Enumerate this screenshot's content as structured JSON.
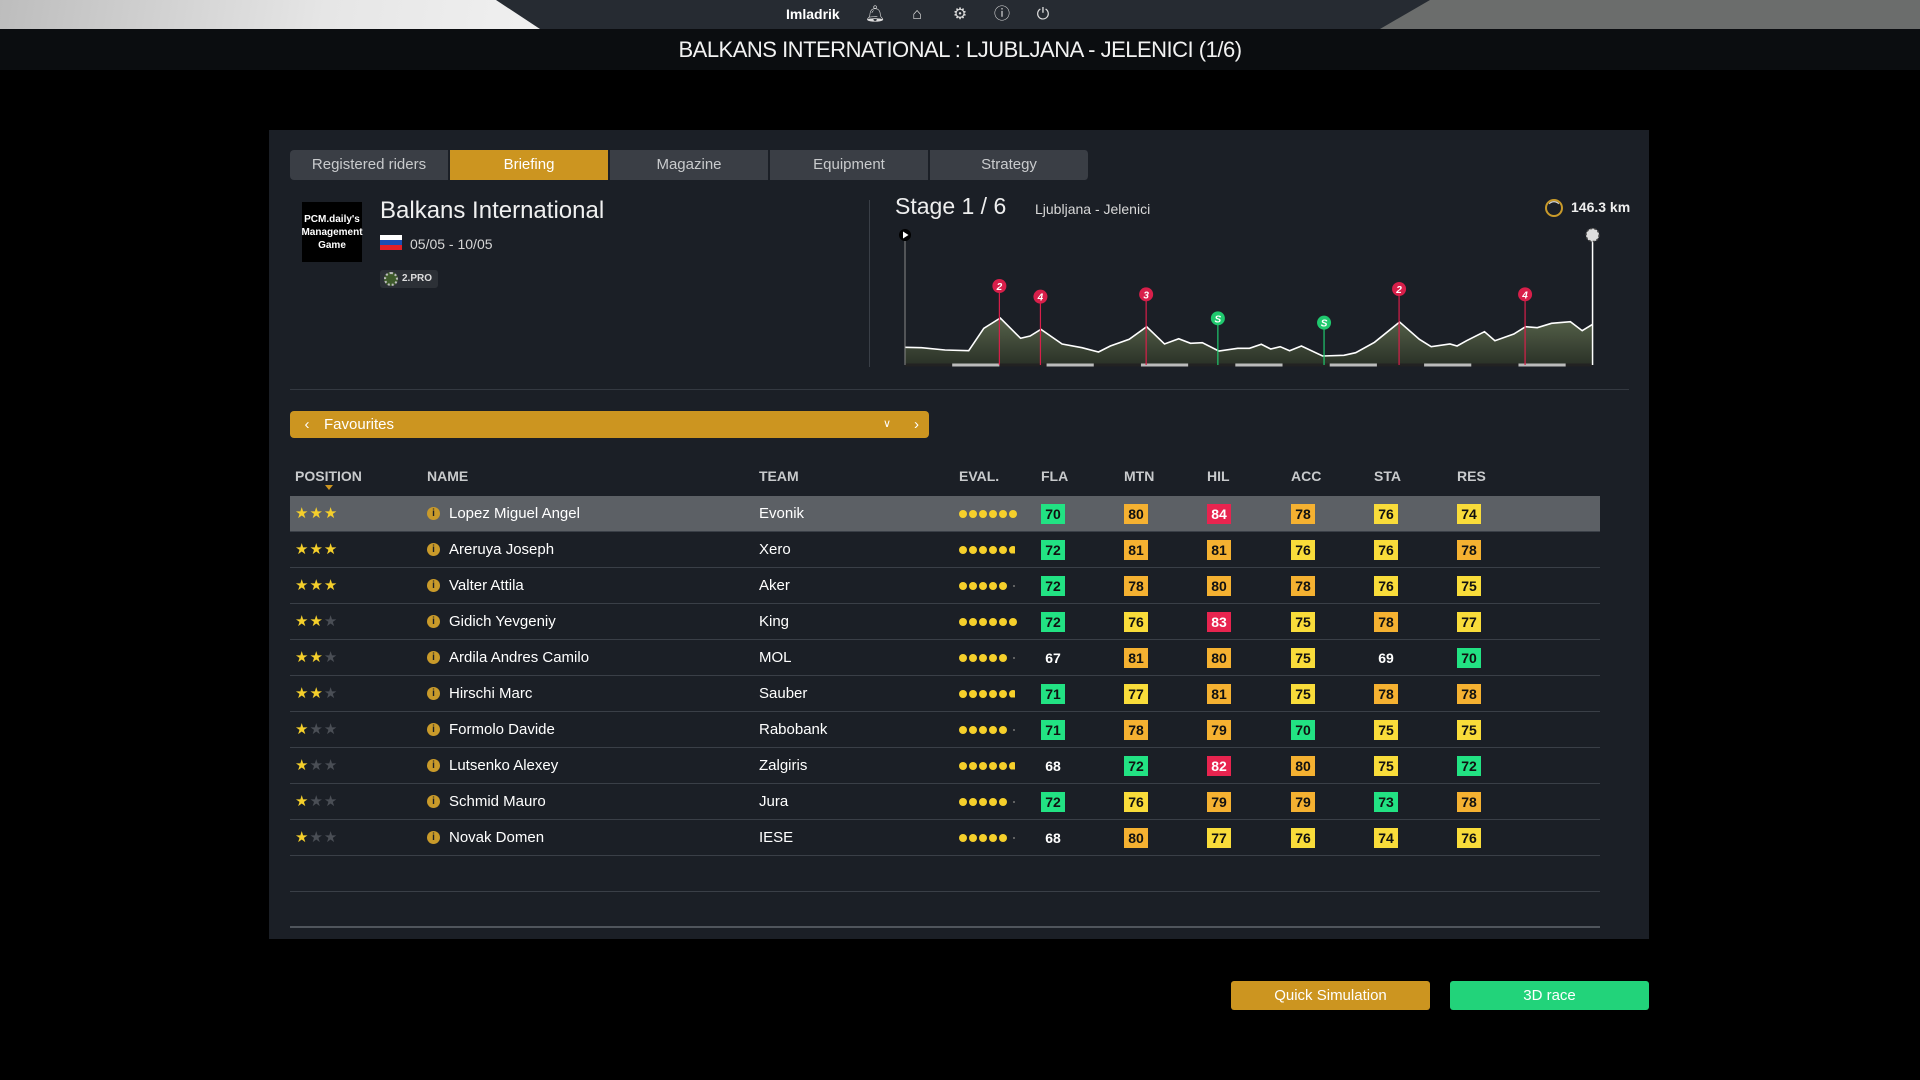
{
  "topbar": {
    "username": "Imladrik",
    "icons": [
      "bell-icon",
      "home-icon",
      "gear-icon",
      "info-icon",
      "power-icon"
    ]
  },
  "title": "BALKANS INTERNATIONAL : LJUBLJANA - JELENICI (1/6)",
  "tabs": [
    {
      "label": "Registered riders",
      "active": false
    },
    {
      "label": "Briefing",
      "active": true
    },
    {
      "label": "Magazine",
      "active": false
    },
    {
      "label": "Equipment",
      "active": false
    },
    {
      "label": "Strategy",
      "active": false
    }
  ],
  "race": {
    "logo_text": "PCM.daily's Management Game",
    "name": "Balkans International",
    "dates": "05/05 - 10/05",
    "category": "2.PRO",
    "country_flag": "slovenia"
  },
  "stage": {
    "title": "Stage 1 / 6",
    "route": "Ljubljana - Jelenici",
    "distance": "146.3 km",
    "markers": [
      "2",
      "4",
      "3",
      "S",
      "S",
      "2",
      "4"
    ]
  },
  "filter": {
    "label": "Favourites"
  },
  "table": {
    "headers": {
      "position": "POSITION",
      "name": "NAME",
      "team": "TEAM",
      "eval": "EVAL.",
      "fla": "FLA",
      "mtn": "MTN",
      "hil": "HIL",
      "acc": "ACC",
      "sta": "STA",
      "res": "RES"
    },
    "sorted_by": "position",
    "rows": [
      {
        "stars": 3,
        "name": "Lopez Miguel Angel",
        "team": "Evonik",
        "eval": 6,
        "fla": 70,
        "mtn": 80,
        "hil": 84,
        "acc": 78,
        "sta": 76,
        "res": 74,
        "selected": true
      },
      {
        "stars": 3,
        "name": "Areruya Joseph",
        "team": "Xero",
        "eval": 5.5,
        "fla": 72,
        "mtn": 81,
        "hil": 81,
        "acc": 76,
        "sta": 76,
        "res": 78
      },
      {
        "stars": 3,
        "name": "Valter Attila",
        "team": "Aker",
        "eval": 5,
        "fla": 72,
        "mtn": 78,
        "hil": 80,
        "acc": 78,
        "sta": 76,
        "res": 75
      },
      {
        "stars": 2,
        "name": "Gidich Yevgeniy",
        "team": "King",
        "eval": 6,
        "fla": 72,
        "mtn": 76,
        "hil": 83,
        "acc": 75,
        "sta": 78,
        "res": 77
      },
      {
        "stars": 2,
        "name": "Ardila Andres Camilo",
        "team": "MOL",
        "eval": 5,
        "fla": 67,
        "mtn": 81,
        "hil": 80,
        "acc": 75,
        "sta": 69,
        "res": 70
      },
      {
        "stars": 2,
        "name": "Hirschi Marc",
        "team": "Sauber",
        "eval": 5.5,
        "fla": 71,
        "mtn": 77,
        "hil": 81,
        "acc": 75,
        "sta": 78,
        "res": 78
      },
      {
        "stars": 1,
        "name": "Formolo Davide",
        "team": "Rabobank",
        "eval": 5,
        "fla": 71,
        "mtn": 78,
        "hil": 79,
        "acc": 70,
        "sta": 75,
        "res": 75
      },
      {
        "stars": 1,
        "name": "Lutsenko Alexey",
        "team": "Zalgiris",
        "eval": 5.5,
        "fla": 68,
        "mtn": 72,
        "hil": 82,
        "acc": 80,
        "sta": 75,
        "res": 72
      },
      {
        "stars": 1,
        "name": "Schmid Mauro",
        "team": "Jura",
        "eval": 5,
        "fla": 72,
        "mtn": 76,
        "hil": 79,
        "acc": 79,
        "sta": 73,
        "res": 78
      },
      {
        "stars": 1,
        "name": "Novak Domen",
        "team": "IESE",
        "eval": 5,
        "fla": 68,
        "mtn": 80,
        "hil": 77,
        "acc": 76,
        "sta": 74,
        "res": 76
      }
    ]
  },
  "colors": {
    "accent": "#cc9520",
    "green": "#22e283",
    "yellow": "#f9dc3a",
    "orange": "#f5b131",
    "red": "#e8244f",
    "race_button": "#22d37a",
    "mountain_marker": "#d81f4a",
    "sprint_marker": "#1fc96e"
  },
  "buttons": {
    "quick_sim": "Quick Simulation",
    "race3d": "3D race"
  }
}
